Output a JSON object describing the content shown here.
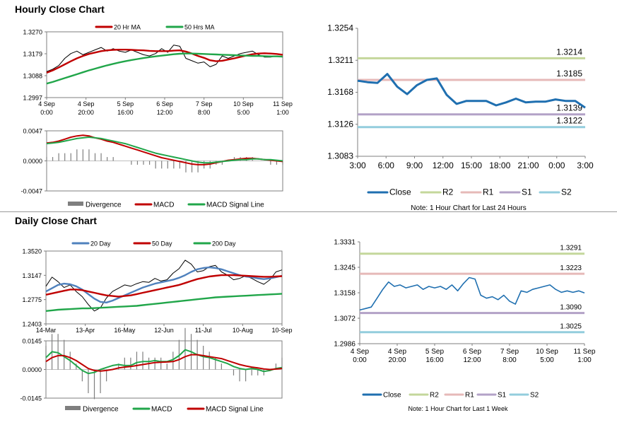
{
  "hourly_title": "Hourly Close Chart",
  "daily_title": "Daily Close Chart",
  "chart_data": [
    {
      "id": "hourly-price",
      "type": "line",
      "title": "",
      "legend": [
        "20 Hr MA",
        "50 Hrs MA"
      ],
      "colors": {
        "close": "#000000",
        "ma20": "#c00000",
        "ma50": "#21a64a"
      },
      "y_ticks": [
        "1.3270",
        "1.3179",
        "1.3088",
        "1.2997"
      ],
      "ylim": [
        1.2997,
        1.327
      ],
      "x_ticks": [
        [
          "4 Sep",
          "0:00"
        ],
        [
          "4 Sep",
          "20:00"
        ],
        [
          "5 Sep",
          "16:00"
        ],
        [
          "6 Sep",
          "12:00"
        ],
        [
          "7 Sep",
          "8:00"
        ],
        [
          "10 Sep",
          "5:00"
        ],
        [
          "11 Sep",
          "1:00"
        ]
      ],
      "series": [
        {
          "name": "Close",
          "color": "#000000",
          "values": [
            1.3105,
            1.3115,
            1.313,
            1.316,
            1.318,
            1.319,
            1.3175,
            1.3185,
            1.3195,
            1.3205,
            1.319,
            1.32,
            1.319,
            1.3185,
            1.3195,
            1.3185,
            1.3175,
            1.317,
            1.318,
            1.32,
            1.3185,
            1.3215,
            1.321,
            1.316,
            1.315,
            1.314,
            1.3145,
            1.3125,
            1.3135,
            1.317,
            1.316,
            1.317,
            1.318,
            1.3185,
            1.319,
            1.3175,
            1.3165,
            1.3165,
            1.317,
            1.3165
          ]
        },
        {
          "name": "20 Hr MA",
          "color": "#c00000",
          "values": [
            1.31,
            1.311,
            1.3122,
            1.3135,
            1.3148,
            1.316,
            1.317,
            1.3178,
            1.3184,
            1.319,
            1.3193,
            1.3195,
            1.3196,
            1.3196,
            1.3195,
            1.3194,
            1.3193,
            1.3191,
            1.319,
            1.319,
            1.319,
            1.3192,
            1.3193,
            1.3188,
            1.318,
            1.317,
            1.3162,
            1.3152,
            1.3148,
            1.315,
            1.3155,
            1.316,
            1.3166,
            1.3172,
            1.3177,
            1.318,
            1.3181,
            1.318,
            1.3178,
            1.3175
          ]
        },
        {
          "name": "50 Hrs MA",
          "color": "#21a64a",
          "values": [
            1.3055,
            1.3062,
            1.307,
            1.3078,
            1.3086,
            1.3094,
            1.3102,
            1.311,
            1.3117,
            1.3124,
            1.3131,
            1.3137,
            1.3143,
            1.3148,
            1.3153,
            1.3157,
            1.3161,
            1.3165,
            1.3168,
            1.3171,
            1.3174,
            1.3177,
            1.3179,
            1.318,
            1.318,
            1.3179,
            1.3178,
            1.3177,
            1.3176,
            1.3175,
            1.3174,
            1.3173,
            1.3172,
            1.3171,
            1.317,
            1.317,
            1.3169,
            1.3168,
            1.3168,
            1.3167
          ]
        }
      ]
    },
    {
      "id": "hourly-macd",
      "type": "line",
      "legend": [
        "Divergence",
        "MACD",
        "MACD Signal Line"
      ],
      "y_ticks": [
        "0.0047",
        "0.0000",
        "-0.0047"
      ],
      "ylim": [
        -0.0047,
        0.0047
      ],
      "divergence": [
        0.0001,
        0.0001,
        0.0002,
        0.0002,
        0.0002,
        0.0003,
        0.0003,
        0.0003,
        0.0002,
        0.0002,
        0.0001,
        0.0001,
        0.0,
        0.0,
        -0.0001,
        -0.0001,
        -0.0001,
        -0.0001,
        -0.0002,
        -0.0002,
        -0.0002,
        -0.0002,
        -0.0002,
        -0.0003,
        -0.0003,
        -0.0003,
        -0.0002,
        -0.0002,
        -0.0001,
        -0.0001,
        0.0,
        0.0001,
        0.0001,
        0.0001,
        0.0001,
        0.0,
        0.0,
        -0.0001,
        -0.0001,
        -0.0001
      ],
      "series": [
        {
          "name": "MACD",
          "color": "#c00000",
          "values": [
            0.0028,
            0.0029,
            0.0031,
            0.0034,
            0.0037,
            0.0039,
            0.004,
            0.0039,
            0.0036,
            0.0034,
            0.0031,
            0.0029,
            0.0026,
            0.0023,
            0.002,
            0.0017,
            0.0014,
            0.0011,
            0.0008,
            0.0005,
            0.0003,
            0.0001,
            -0.0001,
            -0.0003,
            -0.0005,
            -0.0006,
            -0.0006,
            -0.0005,
            -0.0003,
            -0.0001,
            0.0001,
            0.0002,
            0.0003,
            0.0004,
            0.0004,
            0.0003,
            0.0002,
            0.0001,
            0.0,
            -0.0001
          ]
        },
        {
          "name": "MACD Signal Line",
          "color": "#21a64a",
          "values": [
            0.0027,
            0.0028,
            0.0029,
            0.0031,
            0.0033,
            0.0035,
            0.0036,
            0.0037,
            0.0036,
            0.0035,
            0.0033,
            0.0031,
            0.0029,
            0.0027,
            0.0024,
            0.0021,
            0.0018,
            0.0015,
            0.0012,
            0.001,
            0.0008,
            0.0006,
            0.0004,
            0.0002,
            0.0,
            -0.0002,
            -0.0003,
            -0.0003,
            -0.0002,
            -0.0001,
            0.0,
            0.0001,
            0.0002,
            0.0002,
            0.0003,
            0.0003,
            0.0002,
            0.0002,
            0.0001,
            0.0
          ]
        }
      ]
    },
    {
      "id": "hourly-24h",
      "type": "line",
      "note": "Note: 1 Hour Chart for Last 24 Hours",
      "y_ticks": [
        "1.3254",
        "1.3211",
        "1.3168",
        "1.3126",
        "1.3083"
      ],
      "ylim": [
        1.3083,
        1.3254
      ],
      "x_ticks": [
        "3:00",
        "6:00",
        "9:00",
        "12:00",
        "15:00",
        "18:00",
        "21:00",
        "0:00",
        "3:00"
      ],
      "levels": [
        {
          "name": "R2",
          "value": 1.3214,
          "label": "1.3214",
          "color": "#c4d79b"
        },
        {
          "name": "R1",
          "value": 1.3185,
          "label": "1.3185",
          "color": "#e6b9b8"
        },
        {
          "name": "S1",
          "value": 1.3139,
          "label": "1.3139",
          "color": "#b3a2c7"
        },
        {
          "name": "S2",
          "value": 1.3122,
          "label": "1.3122",
          "color": "#93cddd"
        }
      ],
      "series": [
        {
          "name": "Close",
          "color": "#1f6fb0",
          "values": [
            1.3184,
            1.3182,
            1.3181,
            1.3193,
            1.3176,
            1.3166,
            1.3178,
            1.3185,
            1.3187,
            1.3165,
            1.3153,
            1.3157,
            1.3157,
            1.3157,
            1.3151,
            1.3155,
            1.316,
            1.3155,
            1.3156,
            1.3156,
            1.3159,
            1.3157,
            1.3157,
            1.3148
          ]
        }
      ],
      "legend": [
        "Close",
        "R2",
        "R1",
        "S1",
        "S2"
      ]
    },
    {
      "id": "daily-price",
      "type": "line",
      "legend": [
        "20 Day",
        "50 Day",
        "200 Day"
      ],
      "y_ticks": [
        "1.3520",
        "1.3147",
        "1.2775",
        "1.2403"
      ],
      "ylim": [
        1.2403,
        1.352
      ],
      "x_ticks": [
        "14-Mar",
        "13-Apr",
        "16-May",
        "12-Jun",
        "11-Jul",
        "10-Aug",
        "10-Sep"
      ],
      "series": [
        {
          "name": "Close",
          "color": "#000000",
          "values": [
            1.298,
            1.312,
            1.305,
            1.296,
            1.3,
            1.29,
            1.282,
            1.27,
            1.26,
            1.265,
            1.28,
            1.29,
            1.295,
            1.3,
            1.298,
            1.302,
            1.305,
            1.304,
            1.31,
            1.306,
            1.308,
            1.318,
            1.325,
            1.338,
            1.332,
            1.32,
            1.322,
            1.328,
            1.33,
            1.32,
            1.315,
            1.308,
            1.31,
            1.314,
            1.31,
            1.305,
            1.301,
            1.308,
            1.32,
            1.323
          ]
        },
        {
          "name": "20 Day",
          "color": "#4f81bd",
          "values": [
            1.29,
            1.295,
            1.3,
            1.302,
            1.301,
            1.298,
            1.293,
            1.286,
            1.279,
            1.274,
            1.273,
            1.276,
            1.28,
            1.284,
            1.288,
            1.292,
            1.296,
            1.299,
            1.302,
            1.304,
            1.306,
            1.308,
            1.311,
            1.315,
            1.32,
            1.324,
            1.326,
            1.327,
            1.326,
            1.324,
            1.321,
            1.318,
            1.315,
            1.313,
            1.312,
            1.31,
            1.309,
            1.31,
            1.312,
            1.314
          ]
        },
        {
          "name": "50 Day",
          "color": "#c00000",
          "values": [
            1.285,
            1.287,
            1.289,
            1.291,
            1.293,
            1.293,
            1.292,
            1.29,
            1.288,
            1.286,
            1.284,
            1.283,
            1.282,
            1.283,
            1.284,
            1.286,
            1.288,
            1.29,
            1.292,
            1.294,
            1.296,
            1.298,
            1.3,
            1.303,
            1.306,
            1.309,
            1.311,
            1.313,
            1.314,
            1.315,
            1.315,
            1.315,
            1.3145,
            1.314,
            1.3135,
            1.313,
            1.3125,
            1.3125,
            1.313,
            1.3135
          ]
        },
        {
          "name": "200 Day",
          "color": "#21a64a",
          "values": [
            1.26,
            1.261,
            1.262,
            1.2625,
            1.263,
            1.2635,
            1.264,
            1.264,
            1.2645,
            1.265,
            1.2655,
            1.266,
            1.2665,
            1.267,
            1.2675,
            1.268,
            1.269,
            1.27,
            1.271,
            1.272,
            1.273,
            1.274,
            1.275,
            1.276,
            1.277,
            1.278,
            1.279,
            1.28,
            1.281,
            1.2815,
            1.282,
            1.2825,
            1.283,
            1.2835,
            1.284,
            1.2845,
            1.285,
            1.2855,
            1.286,
            1.2865
          ]
        }
      ]
    },
    {
      "id": "daily-macd",
      "type": "line",
      "legend": [
        "Divergence",
        "MACD",
        "MACD Signal Line"
      ],
      "y_ticks": [
        "0.0145",
        "0.0000",
        "-0.0145"
      ],
      "ylim": [
        -0.0145,
        0.0145
      ],
      "divergence": [
        0.002,
        0.003,
        0.003,
        0.0025,
        0.0015,
        0.0005,
        -0.001,
        -0.002,
        -0.0025,
        -0.002,
        -0.001,
        0.0,
        0.0005,
        0.001,
        0.001,
        0.0015,
        0.0015,
        0.001,
        0.001,
        0.001,
        0.0005,
        0.0015,
        0.0025,
        0.0035,
        0.003,
        0.0025,
        0.002,
        0.0015,
        0.001,
        0.0005,
        0.0,
        -0.0005,
        -0.001,
        -0.001,
        -0.0005,
        -0.0005,
        -0.0005,
        0.0,
        0.0005,
        0.001
      ],
      "series": [
        {
          "name": "MACD",
          "color": "#21a64a",
          "values": [
            0.006,
            0.009,
            0.0085,
            0.0065,
            0.0045,
            0.002,
            -0.0005,
            -0.002,
            -0.0015,
            0.0,
            0.001,
            0.002,
            0.0025,
            0.002,
            0.002,
            0.0035,
            0.004,
            0.004,
            0.0045,
            0.004,
            0.004,
            0.005,
            0.007,
            0.01,
            0.009,
            0.0075,
            0.0065,
            0.006,
            0.005,
            0.004,
            0.003,
            0.0015,
            0.0005,
            0.0,
            0.0005,
            0.0,
            -0.001,
            -0.0005,
            0.0005,
            0.001
          ]
        },
        {
          "name": "MACD Signal Line",
          "color": "#c00000",
          "values": [
            0.004,
            0.006,
            0.007,
            0.007,
            0.006,
            0.0045,
            0.0025,
            0.0005,
            -0.0005,
            -0.0008,
            -0.0005,
            0.0,
            0.0008,
            0.0012,
            0.0015,
            0.002,
            0.0025,
            0.003,
            0.0035,
            0.0037,
            0.0038,
            0.004,
            0.005,
            0.0065,
            0.0075,
            0.0075,
            0.007,
            0.0065,
            0.006,
            0.0055,
            0.0045,
            0.0035,
            0.0025,
            0.0018,
            0.0012,
            0.0008,
            0.0003,
            0.0,
            0.0002,
            0.0005
          ]
        }
      ]
    },
    {
      "id": "daily-week",
      "type": "line",
      "note": "Note: 1 Hour Chart for Last 1 Week",
      "y_ticks": [
        "1.3331",
        "1.3245",
        "1.3158",
        "1.3072",
        "1.2986"
      ],
      "ylim": [
        1.2986,
        1.3331
      ],
      "x_ticks": [
        [
          "4 Sep",
          "0:00"
        ],
        [
          "4 Sep",
          "20:00"
        ],
        [
          "5 Sep",
          "16:00"
        ],
        [
          "6 Sep",
          "12:00"
        ],
        [
          "7 Sep",
          "8:00"
        ],
        [
          "10 Sep",
          "5:00"
        ],
        [
          "11 Sep",
          "1:00"
        ]
      ],
      "levels": [
        {
          "name": "R2",
          "value": 1.3291,
          "label": "1.3291",
          "color": "#c4d79b"
        },
        {
          "name": "R1",
          "value": 1.3223,
          "label": "1.3223",
          "color": "#e6b9b8"
        },
        {
          "name": "S1",
          "value": 1.309,
          "label": "1.3090",
          "color": "#b3a2c7"
        },
        {
          "name": "S2",
          "value": 1.3025,
          "label": "1.3025",
          "color": "#93cddd"
        }
      ],
      "series": [
        {
          "name": "Close",
          "color": "#1f6fb0",
          "values": [
            1.31,
            1.3105,
            1.311,
            1.314,
            1.317,
            1.3195,
            1.318,
            1.3185,
            1.3175,
            1.318,
            1.3185,
            1.317,
            1.318,
            1.3175,
            1.318,
            1.317,
            1.3185,
            1.3165,
            1.319,
            1.321,
            1.3205,
            1.315,
            1.314,
            1.3145,
            1.3135,
            1.315,
            1.313,
            1.312,
            1.3165,
            1.316,
            1.317,
            1.3175,
            1.318,
            1.3185,
            1.317,
            1.316,
            1.3165,
            1.316,
            1.3165,
            1.3158
          ]
        }
      ],
      "legend": [
        "Close",
        "R2",
        "R1",
        "S1",
        "S2"
      ]
    }
  ]
}
